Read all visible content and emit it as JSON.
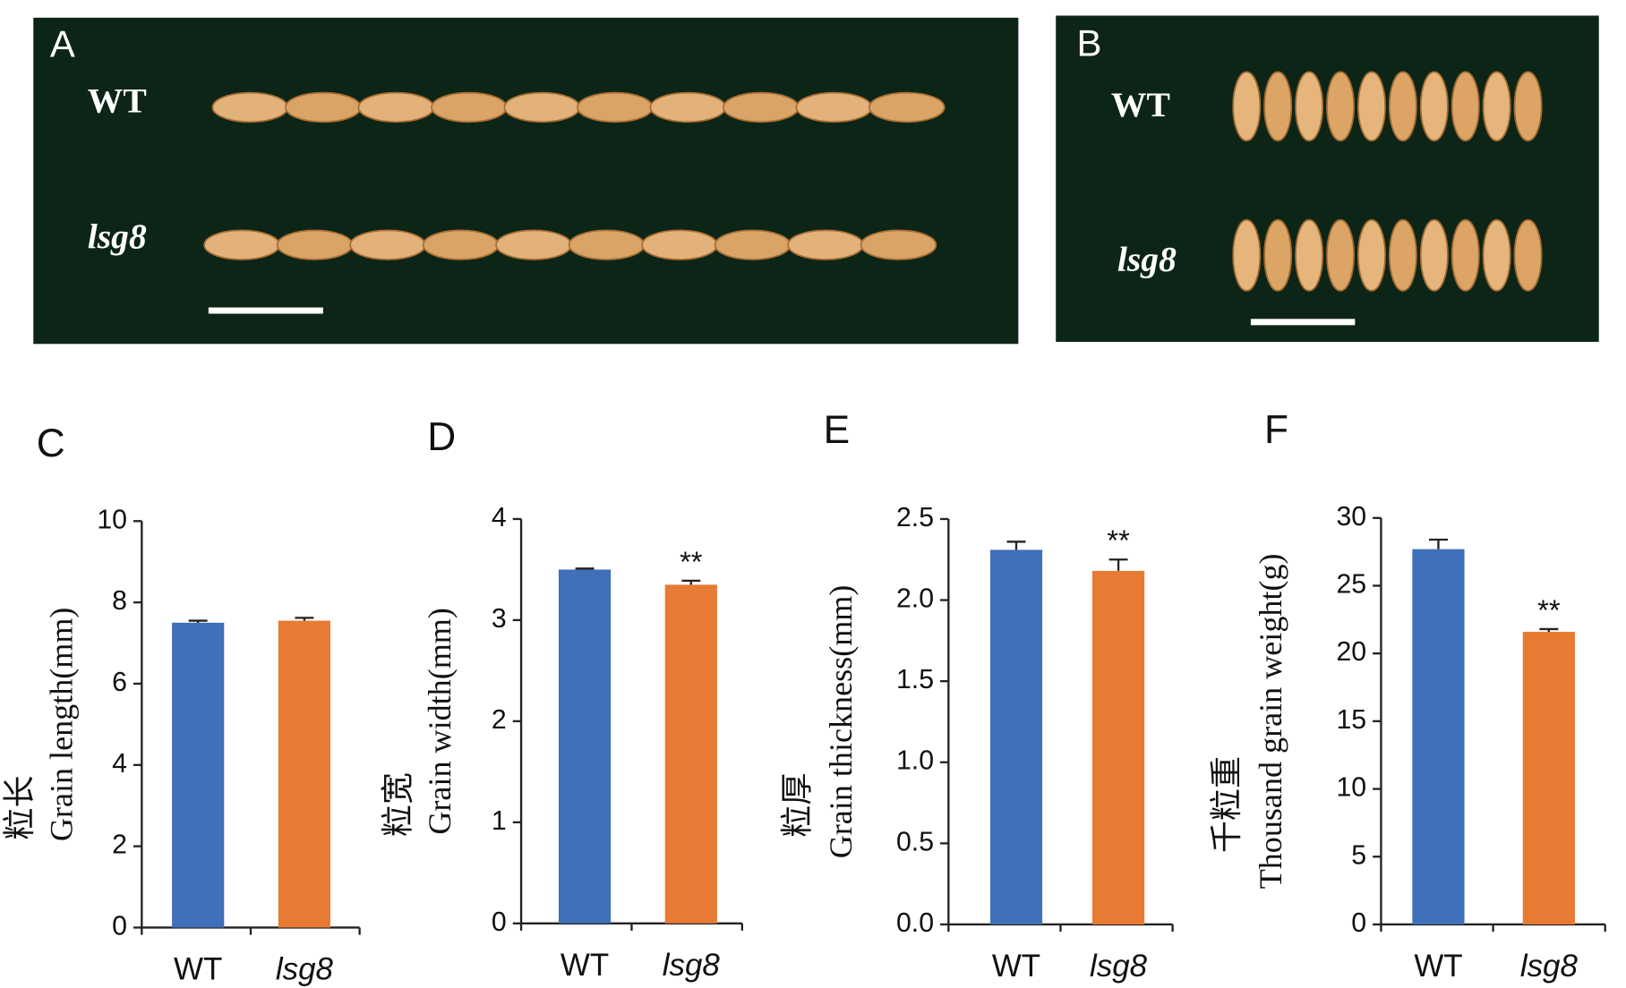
{
  "photos": [
    {
      "label": "A",
      "rows": [
        "WT",
        "lsg8"
      ]
    },
    {
      "label": "B",
      "rows": [
        "WT",
        "lsg8"
      ]
    }
  ],
  "chart_data": [
    {
      "type": "bar",
      "panel": "C",
      "ylabel_cn": "粒长",
      "ylabel": "Grain length(mm)",
      "categories": [
        "WT",
        "lsg8"
      ],
      "values": [
        7.5,
        7.55
      ],
      "errors": [
        0.05,
        0.07
      ],
      "colors": [
        "#4070b8",
        "#e77b34"
      ],
      "ylim": [
        0,
        10
      ],
      "yticks": [
        0,
        2,
        4,
        6,
        8,
        10
      ],
      "value_annotations": [
        null,
        null
      ]
    },
    {
      "type": "bar",
      "panel": "D",
      "ylabel_cn": "粒宽",
      "ylabel": "Grain width(mm)",
      "categories": [
        "WT",
        "lsg8"
      ],
      "values": [
        3.5,
        3.35
      ],
      "errors": [
        0.01,
        0.04
      ],
      "colors": [
        "#4070b8",
        "#e77b34"
      ],
      "ylim": [
        0,
        4
      ],
      "yticks": [
        0,
        1,
        2,
        3,
        4
      ],
      "value_annotations": [
        null,
        "**"
      ]
    },
    {
      "type": "bar",
      "panel": "E",
      "ylabel_cn": "粒厚",
      "ylabel": "Grain thickness(mm)",
      "categories": [
        "WT",
        "lsg8"
      ],
      "values": [
        2.31,
        2.18
      ],
      "errors": [
        0.05,
        0.07
      ],
      "colors": [
        "#4070b8",
        "#e77b34"
      ],
      "ylim": [
        0,
        2.5
      ],
      "yticks": [
        {
          "value": 0,
          "label": "0.0"
        },
        0.5,
        {
          "value": 1,
          "label": "1.0"
        },
        1.5,
        {
          "value": 2,
          "label": "2.0"
        },
        2.5
      ],
      "value_annotations": [
        null,
        "**"
      ]
    },
    {
      "type": "bar",
      "panel": "F",
      "ylabel_cn": "千粒重",
      "ylabel": "Thousand grain weight(g)",
      "categories": [
        "WT",
        "lsg8"
      ],
      "values": [
        27.7,
        21.6
      ],
      "errors": [
        0.7,
        0.2
      ],
      "colors": [
        "#4070b8",
        "#e77b34"
      ],
      "ylim": [
        0,
        30
      ],
      "yticks": [
        0,
        5,
        10,
        15,
        20,
        25,
        30
      ],
      "value_annotations": [
        null,
        "**"
      ]
    }
  ]
}
